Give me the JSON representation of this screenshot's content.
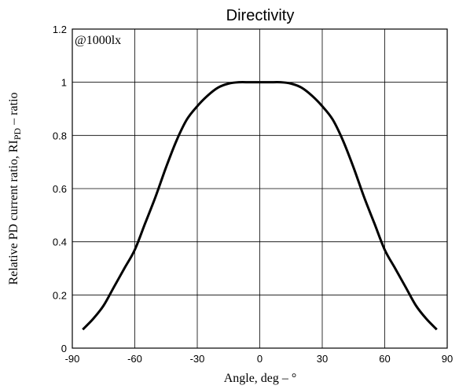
{
  "chart_data": {
    "type": "line",
    "title": "Directivity",
    "xlabel": "Angle, deg – °",
    "ylabel": {
      "prefix": "Relative PD current ratio, RI",
      "subscript": "PD",
      "suffix": " – ratio"
    },
    "annotation": "@1000lx",
    "xlim": [
      -90,
      90
    ],
    "ylim": [
      0,
      1.2
    ],
    "x_ticks": [
      -90,
      -60,
      -30,
      0,
      30,
      60,
      90
    ],
    "y_ticks": [
      0,
      0.2,
      0.4,
      0.6,
      0.8,
      1,
      1.2
    ],
    "grid": true,
    "series": [
      {
        "color": "#000000",
        "x": [
          -85,
          -80,
          -75,
          -70,
          -65,
          -60,
          -55,
          -50,
          -45,
          -40,
          -35,
          -30,
          -25,
          -20,
          -15,
          -10,
          -5,
          0,
          5,
          10,
          15,
          20,
          25,
          30,
          35,
          40,
          45,
          50,
          55,
          60,
          65,
          70,
          75,
          80,
          85
        ],
        "y": [
          0.07,
          0.11,
          0.16,
          0.23,
          0.3,
          0.37,
          0.47,
          0.57,
          0.68,
          0.78,
          0.86,
          0.91,
          0.95,
          0.98,
          0.995,
          1.0,
          1.0,
          1.0,
          1.0,
          1.0,
          0.995,
          0.98,
          0.95,
          0.91,
          0.86,
          0.78,
          0.68,
          0.57,
          0.47,
          0.37,
          0.3,
          0.23,
          0.16,
          0.11,
          0.07
        ]
      }
    ]
  }
}
